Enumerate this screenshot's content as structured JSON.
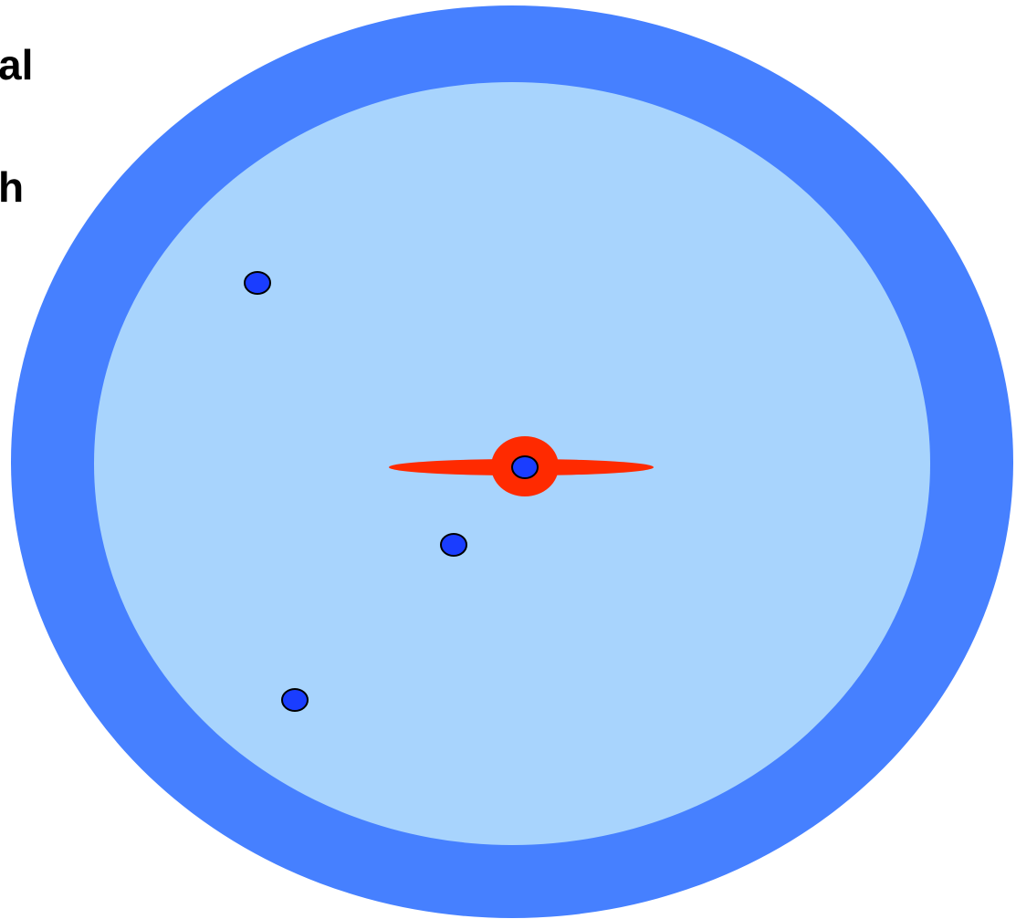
{
  "text_fragments": [
    "al",
    "h"
  ],
  "colors": {
    "outer_ring": "#4680FF",
    "inner_disc": "#A8D4FD",
    "red_mark": "#FF2A00",
    "dot_fill": "#1A3DFF",
    "dot_stroke": "#000000"
  },
  "icons": {
    "dots": "blue-dot-icon",
    "red_mark": "red-propeller-marker-icon"
  }
}
